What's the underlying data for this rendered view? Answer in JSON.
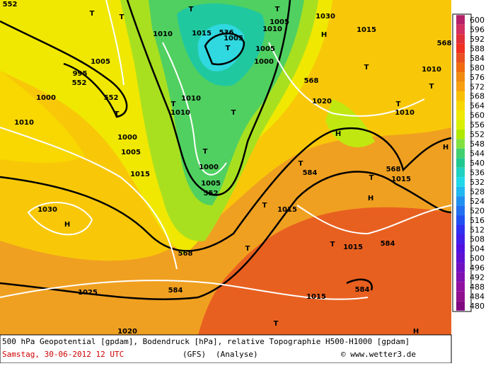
{
  "map_labels": [
    "552",
    "995",
    "552",
    "552",
    "T",
    "T",
    "T",
    "T",
    "536",
    "1015",
    "1005",
    "T",
    "T",
    "1005",
    "1010",
    "1010",
    "1005",
    "1000",
    "H",
    "1030",
    "1015",
    "568",
    "1010",
    "T",
    "T",
    "568",
    "1020",
    "T",
    "1010",
    "1010",
    "T",
    "1010",
    "T",
    "1000",
    "1005",
    "H",
    "T",
    "T",
    "584",
    "568",
    "1015",
    "1015",
    "1000",
    "1005",
    "552",
    "H",
    "T",
    "1030",
    "H",
    "T",
    "1015",
    "H",
    "T",
    "1015",
    "584",
    "568",
    "T",
    "1025",
    "584",
    "584",
    "1015",
    "T",
    "1000",
    "1005",
    "1010",
    "1020",
    "H"
  ],
  "legend": {
    "labels": [
      "600",
      "596",
      "592",
      "588",
      "584",
      "580",
      "576",
      "572",
      "568",
      "564",
      "560",
      "556",
      "552",
      "548",
      "544",
      "540",
      "536",
      "532",
      "528",
      "524",
      "520",
      "516",
      "512",
      "508",
      "504",
      "500",
      "496",
      "492",
      "488",
      "484",
      "480"
    ],
    "colors": [
      "#b4206a",
      "#d23060",
      "#e0303a",
      "#f03020",
      "#e85020",
      "#f06a10",
      "#f08a10",
      "#f8a010",
      "#f8c000",
      "#f8d800",
      "#f0e800",
      "#d8f000",
      "#b0e800",
      "#80e040",
      "#40d070",
      "#20c890",
      "#20d0c0",
      "#20d8e8",
      "#20b8f0",
      "#2090f0",
      "#2070f0",
      "#2050f0",
      "#3030f0",
      "#4020e8",
      "#5010e0",
      "#6010d0",
      "#7010c0",
      "#8010b0",
      "#9010a0",
      "#901090",
      "#800880"
    ]
  },
  "footer": {
    "line1": "500 hPa Geopotential [gpdam], Bodendruck [hPa], relative Topographie H500-H1000 [gpdam]",
    "date": "Samstag, 30-06-2012  12 UTC",
    "model": "(GFS)",
    "run": "(Analyse)",
    "credit": "© www.wetter3.de"
  }
}
